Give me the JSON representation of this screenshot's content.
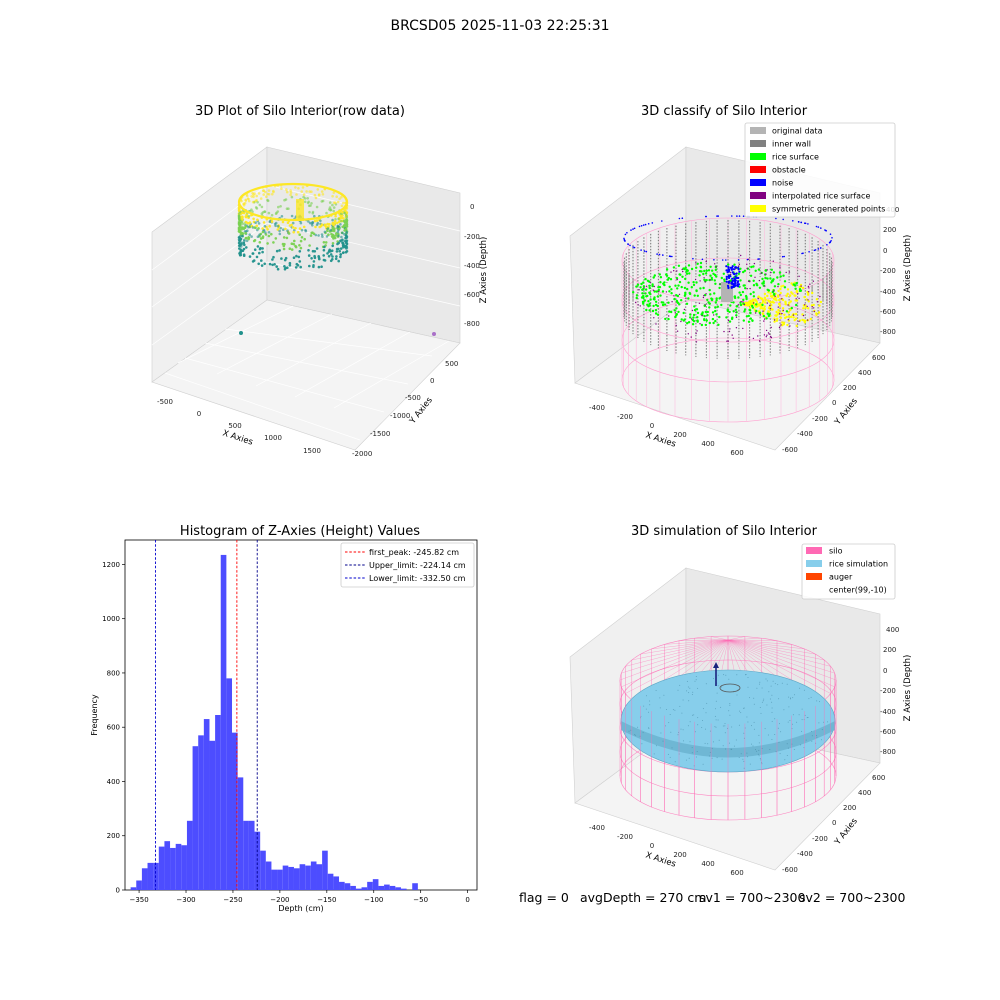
{
  "figure": {
    "suptitle": "BRCSD05 2025-11-03 22:25:31",
    "status": {
      "flag": "flag = 0",
      "avg_depth": "avgDepth = 270 cm",
      "sv1": "sv1 = 700~2300",
      "sv2": "sv2 = 700~2300"
    }
  },
  "colors": {
    "hist_bar": "#4d4dff",
    "first_peak": "#ff0000",
    "limit_line": "#00008b",
    "viridis_a": "#21918c",
    "viridis_b": "#7ad151",
    "viridis_c": "#fde725",
    "silo": "#ff69b4",
    "rice_sim": "#87ceeb",
    "auger": "#ff4500"
  },
  "chart_data": [
    {
      "type": "scatter3d",
      "title": "3D Plot of Silo Interior(row data)",
      "xlabel": "X Axies",
      "ylabel": "Y Axies",
      "zlabel": "Z Axies (Depth)",
      "x_ticks": [
        "-500",
        "0",
        "500",
        "1000",
        "1500"
      ],
      "y_ticks": [
        "500",
        "0",
        "-500",
        "-1000",
        "-1500",
        "-2000"
      ],
      "z_ticks": [
        "0",
        "-200",
        "-400",
        "-600",
        "-800"
      ],
      "xlim": [
        -650,
        1800
      ],
      "ylim": [
        -2000,
        700
      ],
      "zlim": [
        -900,
        0
      ]
    },
    {
      "type": "scatter3d",
      "title": "3D classify of Silo Interior",
      "xlabel": "X Axies",
      "ylabel": "Y Axies",
      "zlabel": "Z Axies (Depth)",
      "x_ticks": [
        "-400",
        "-200",
        "0",
        "200",
        "400",
        "600"
      ],
      "y_ticks": [
        "600",
        "400",
        "200",
        "0",
        "-200",
        "-400",
        "-600"
      ],
      "z_ticks": [
        "400",
        "200",
        "0",
        "-200",
        "-400",
        "-600",
        "-800"
      ],
      "legend": [
        {
          "label": "original data",
          "color": "#b4b4b4"
        },
        {
          "label": "inner wall",
          "color": "#808080"
        },
        {
          "label": "rice surface",
          "color": "#00ff00"
        },
        {
          "label": "obstacle",
          "color": "#ff0000"
        },
        {
          "label": "noise",
          "color": "#0000ff"
        },
        {
          "label": "interpolated rice surface",
          "color": "#800080"
        },
        {
          "label": "symmetric generated points",
          "color": "#ffff00"
        }
      ],
      "legend_loc": "upper right"
    },
    {
      "type": "bar",
      "title": "Histogram of Z-Axies (Height) Values",
      "xlabel": "Depth (cm)",
      "ylabel": "Frequency",
      "xlim": [
        -365,
        10
      ],
      "ylim": [
        0,
        1290
      ],
      "x_ticks": [
        -350,
        -300,
        -250,
        -200,
        -150,
        -100,
        -50,
        0
      ],
      "y_ticks": [
        0,
        200,
        400,
        600,
        800,
        1000,
        1200
      ],
      "bin_start": -359,
      "bin_width": 6,
      "values": [
        10,
        35,
        80,
        100,
        100,
        160,
        180,
        155,
        170,
        165,
        255,
        530,
        570,
        630,
        550,
        645,
        1235,
        780,
        580,
        415,
        255,
        255,
        215,
        145,
        105,
        75,
        75,
        90,
        85,
        80,
        95,
        90,
        105,
        95,
        145,
        60,
        50,
        30,
        25,
        15,
        5,
        10,
        30,
        40,
        15,
        20,
        15,
        10,
        5,
        0,
        25
      ],
      "vlines": [
        {
          "x": -245.82,
          "label": "first_peak: -245.82 cm",
          "color": "#ff0000"
        },
        {
          "x": -224.14,
          "label": "Upper_limit: -224.14 cm",
          "color": "#00008b"
        },
        {
          "x": -332.5,
          "label": "Lower_limit: -332.50 cm",
          "color": "#0000cd"
        }
      ],
      "legend_loc": "upper right"
    },
    {
      "type": "surface3d",
      "title": "3D simulation of Silo Interior",
      "xlabel": "X Axies",
      "ylabel": "Y Axies",
      "zlabel": "Z Axies (Depth)",
      "x_ticks": [
        "-400",
        "-200",
        "0",
        "200",
        "400",
        "600"
      ],
      "y_ticks": [
        "600",
        "400",
        "200",
        "0",
        "-200",
        "-400",
        "-600"
      ],
      "z_ticks": [
        "400",
        "200",
        "0",
        "-200",
        "-400",
        "-600",
        "-800"
      ],
      "legend": [
        {
          "label": "silo",
          "color": "#ff69b4"
        },
        {
          "label": "rice simulation",
          "color": "#87ceeb"
        },
        {
          "label": "auger",
          "color": "#ff4500"
        },
        {
          "label": "center(99,-10)",
          "color": ""
        }
      ],
      "legend_loc": "upper right"
    }
  ]
}
